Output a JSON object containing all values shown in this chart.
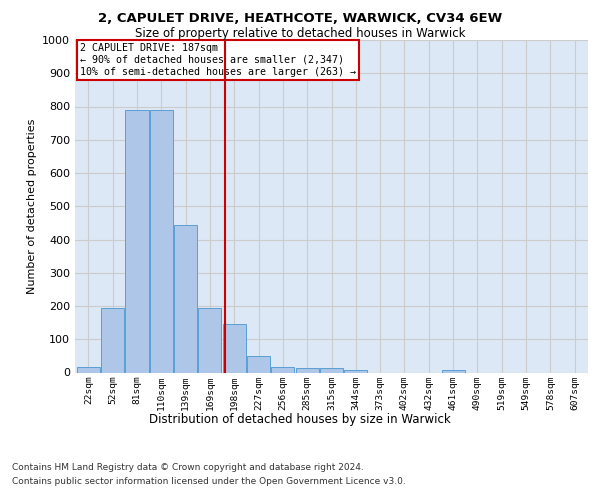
{
  "title1": "2, CAPULET DRIVE, HEATHCOTE, WARWICK, CV34 6EW",
  "title2": "Size of property relative to detached houses in Warwick",
  "xlabel": "Distribution of detached houses by size in Warwick",
  "ylabel": "Number of detached properties",
  "bin_labels": [
    "22sqm",
    "52sqm",
    "81sqm",
    "110sqm",
    "139sqm",
    "169sqm",
    "198sqm",
    "227sqm",
    "256sqm",
    "285sqm",
    "315sqm",
    "344sqm",
    "373sqm",
    "402sqm",
    "432sqm",
    "461sqm",
    "490sqm",
    "519sqm",
    "549sqm",
    "578sqm",
    "607sqm"
  ],
  "bin_edges": [
    22,
    52,
    81,
    110,
    139,
    169,
    198,
    227,
    256,
    285,
    315,
    344,
    373,
    402,
    432,
    461,
    490,
    519,
    549,
    578,
    607
  ],
  "bar_heights": [
    18,
    195,
    790,
    790,
    445,
    195,
    145,
    50,
    18,
    13,
    13,
    8,
    0,
    0,
    0,
    8,
    0,
    0,
    0,
    0,
    0
  ],
  "bar_color": "#aec6e8",
  "bar_edge_color": "#5a9fd4",
  "property_line_x": 187,
  "property_label": "2 CAPULET DRIVE: 187sqm",
  "annotation_line1": "← 90% of detached houses are smaller (2,347)",
  "annotation_line2": "10% of semi-detached houses are larger (263) →",
  "annotation_box_color": "#cc0000",
  "vline_color": "#cc0000",
  "grid_color": "#cccccc",
  "background_color": "#dce8f5",
  "ylim": [
    0,
    1000
  ],
  "yticks": [
    0,
    100,
    200,
    300,
    400,
    500,
    600,
    700,
    800,
    900,
    1000
  ],
  "footer1": "Contains HM Land Registry data © Crown copyright and database right 2024.",
  "footer2": "Contains public sector information licensed under the Open Government Licence v3.0."
}
